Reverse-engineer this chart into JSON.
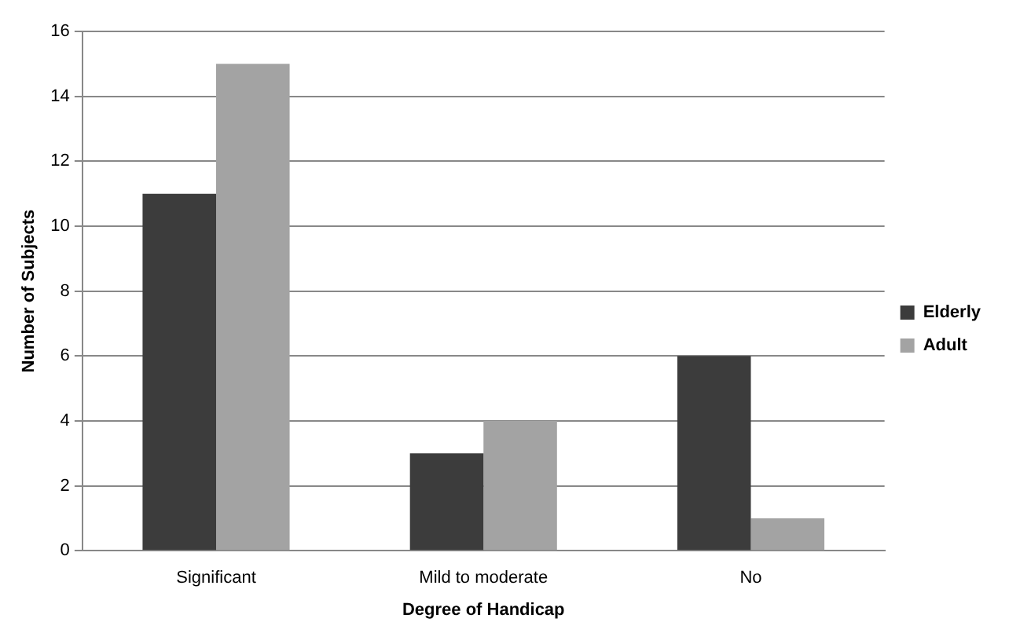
{
  "chart_data": {
    "type": "bar",
    "xlabel": "Degree of Handicap",
    "ylabel": "Number of Subjects",
    "categories": [
      "Significant",
      "Mild to moderate",
      "No"
    ],
    "series": [
      {
        "name": "Elderly",
        "color": "#3c3c3c",
        "values": [
          11,
          3,
          6
        ]
      },
      {
        "name": "Adult",
        "color": "#a3a3a3",
        "values": [
          15,
          4,
          1
        ]
      }
    ],
    "ylim": [
      0,
      16
    ],
    "yticks": [
      0,
      2,
      4,
      6,
      8,
      10,
      12,
      14,
      16
    ],
    "grid": "y",
    "legend": "right"
  }
}
